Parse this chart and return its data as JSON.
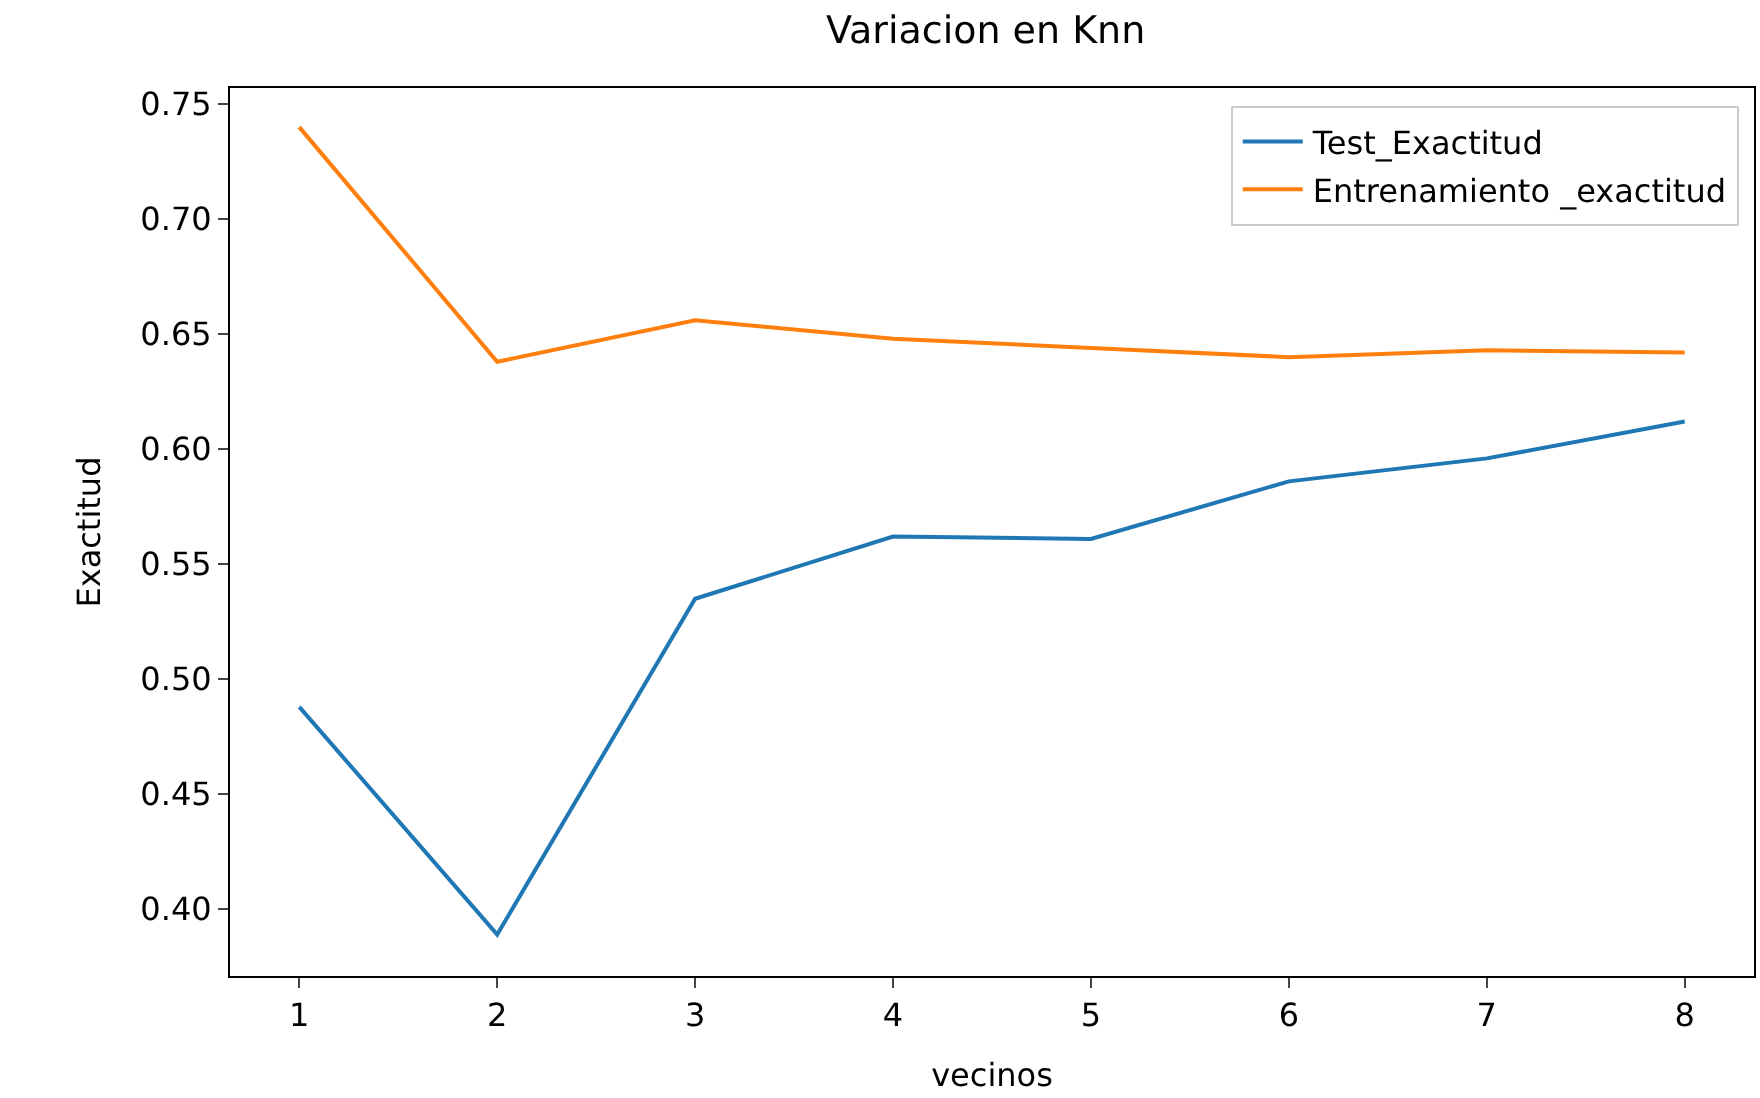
{
  "chart_data": {
    "type": "line",
    "title": "Variacion en Knn",
    "xlabel": "vecinos",
    "ylabel": "Exactitud",
    "x": [
      1,
      2,
      3,
      4,
      5,
      6,
      7,
      8
    ],
    "series": [
      {
        "name": "Test_Exactitud",
        "color": "#1f77b4",
        "values": [
          0.488,
          0.389,
          0.535,
          0.562,
          0.561,
          0.586,
          0.596,
          0.612
        ]
      },
      {
        "name": "Entrenamiento _exactitud",
        "color": "#ff7f0e",
        "values": [
          0.74,
          0.638,
          0.656,
          0.648,
          0.644,
          0.64,
          0.643,
          0.642
        ]
      }
    ],
    "xlim": [
      0.65,
      8.35
    ],
    "xticks": [
      1,
      2,
      3,
      4,
      5,
      6,
      7,
      8
    ],
    "ylim": [
      0.371,
      0.757
    ],
    "yticks": [
      {
        "value": 0.4,
        "label": "0.40"
      },
      0.45,
      {
        "value": 0.5,
        "label": "0.50"
      },
      0.55,
      {
        "value": 0.6,
        "label": "0.60"
      },
      0.65,
      {
        "value": 0.7,
        "label": "0.70"
      },
      0.75
    ],
    "legend": "top right",
    "marker": "none",
    "line_style": "solid"
  }
}
